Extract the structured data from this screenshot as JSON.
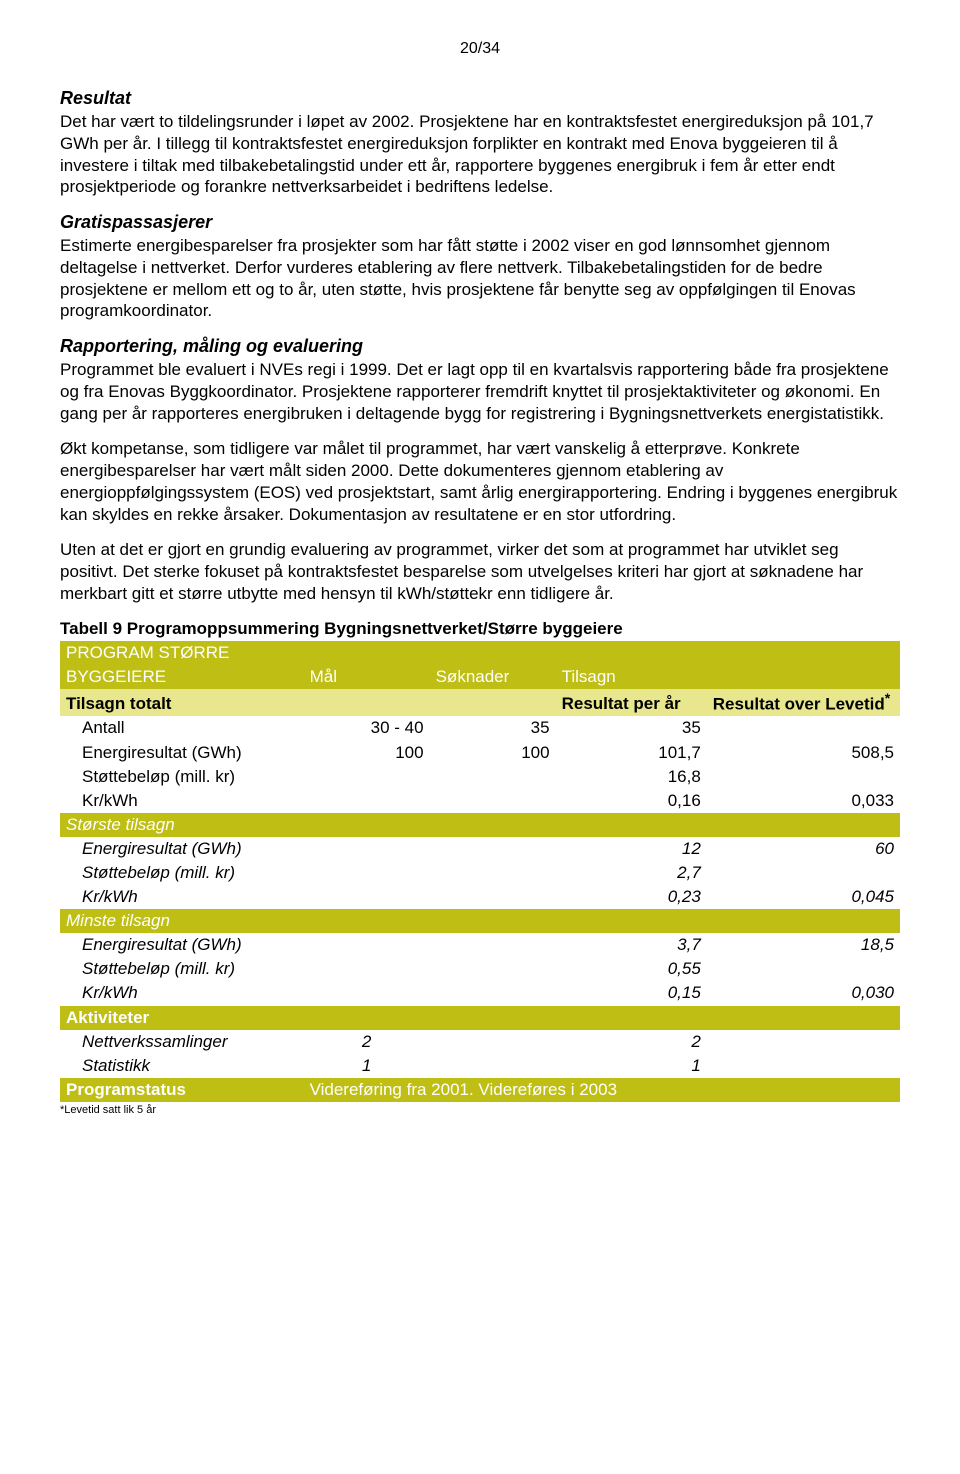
{
  "page_number": "20/34",
  "headings": {
    "resultat": "Resultat",
    "gratis": "Gratispassasjerer",
    "rapport": "Rapportering, måling og evaluering"
  },
  "para": {
    "resultat": "Det har vært to tildelingsrunder i løpet av 2002. Prosjektene har en kontraktsfestet energireduksjon på 101,7 GWh per år. I tillegg til kontraktsfestet energireduksjon forplikter en kontrakt med Enova byggeieren til å investere i tiltak med tilbakebetalingstid under ett år, rapportere byggenes energibruk i fem år etter endt prosjektperiode og forankre nettverksarbeidet i bedriftens ledelse.",
    "gratis": "Estimerte energibesparelser fra prosjekter som har fått støtte i 2002 viser en god lønnsomhet gjennom deltagelse i nettverket.  Derfor vurderes etablering av flere nettverk. Tilbakebetalingstiden for de bedre prosjektene er mellom ett og to år, uten støtte, hvis prosjektene får benytte seg av oppfølgingen til Enovas programkoordinator.",
    "rapport1": "Programmet ble evaluert i NVEs regi i 1999. Det er lagt opp til en kvartalsvis rapportering både fra prosjektene og fra Enovas Byggkoordinator. Prosjektene rapporterer fremdrift knyttet til prosjektaktiviteter og økonomi. En gang per år rapporteres energibruken i deltagende bygg for registrering i Bygningsnettverkets energistatistikk.",
    "rapport2": "Økt kompetanse, som tidligere var målet til programmet, har vært vanskelig å etterprøve. Konkrete energibesparelser har vært målt siden 2000. Dette dokumenteres gjennom etablering av energioppfølgingssystem (EOS) ved prosjektstart, samt årlig energirapportering. Endring i byggenes energibruk kan skyldes en rekke årsaker. Dokumentasjon av resultatene er en stor utfordring.",
    "rapport3": "Uten at det er gjort en grundig evaluering av programmet, virker det som at programmet har utviklet seg positivt. Det sterke fokuset på kontraktsfestet besparelse som utvelgelses kriteri har gjort at søknadene har merkbart gitt et større utbytte med hensyn til kWh/støttekr enn tidligere år."
  },
  "table": {
    "caption": "Tabell 9 Programoppsummering Bygningsnettverket/Større byggeiere",
    "program_line1": "PROGRAM STØRRE",
    "program_line2": "BYGGEIERE",
    "col_mal": "Mål",
    "col_soknader": "Søknader",
    "col_tilsagn": "Tilsagn",
    "tilsagn_totalt": "Tilsagn totalt",
    "resultat_per_ar": "Resultat per år",
    "resultat_over_levetid": "Resultat over Levetid",
    "superscript": "*",
    "rows": {
      "antall": {
        "label": "Antall",
        "mal": "30 - 40",
        "sok": "35",
        "per_ar": "35",
        "levetid": ""
      },
      "energi": {
        "label": "Energiresultat (GWh)",
        "mal": "100",
        "sok": "100",
        "per_ar": "101,7",
        "levetid": "508,5"
      },
      "stotte": {
        "label": "Støttebeløp (mill. kr)",
        "mal": "",
        "sok": "",
        "per_ar": "16,8",
        "levetid": ""
      },
      "krkwh": {
        "label": "Kr/kWh",
        "mal": "",
        "sok": "",
        "per_ar": "0,16",
        "levetid": "0,033"
      }
    },
    "storste_tilsagn": "Største tilsagn",
    "storste": {
      "energi": {
        "label": "Energiresultat (GWh)",
        "per_ar": "12",
        "levetid": "60"
      },
      "stotte": {
        "label": "Støttebeløp (mill. kr)",
        "per_ar": "2,7",
        "levetid": ""
      },
      "krkwh": {
        "label": "Kr/kWh",
        "per_ar": "0,23",
        "levetid": "0,045"
      }
    },
    "minste_tilsagn": "Minste tilsagn",
    "minste": {
      "energi": {
        "label": "Energiresultat (GWh)",
        "per_ar": "3,7",
        "levetid": "18,5"
      },
      "stotte": {
        "label": "Støttebeløp (mill. kr)",
        "per_ar": "0,55",
        "levetid": ""
      },
      "krkwh": {
        "label": "Kr/kWh",
        "per_ar": "0,15",
        "levetid": "0,030"
      }
    },
    "aktiviteter": "Aktiviteter",
    "akt": {
      "nett": {
        "label": "Nettverkssamlinger",
        "mal": "2",
        "per_ar": "2"
      },
      "stat": {
        "label": "Statistikk",
        "mal": "1",
        "per_ar": "1"
      }
    },
    "programstatus": "Programstatus",
    "programstatus_val": "Videreføring fra 2001. Videreføres i 2003"
  },
  "footnote": "*Levetid satt lik 5 år",
  "colors": {
    "olive": "#bfbe14",
    "olive_light": "#e8e78e",
    "white": "#ffffff",
    "black": "#000000"
  }
}
